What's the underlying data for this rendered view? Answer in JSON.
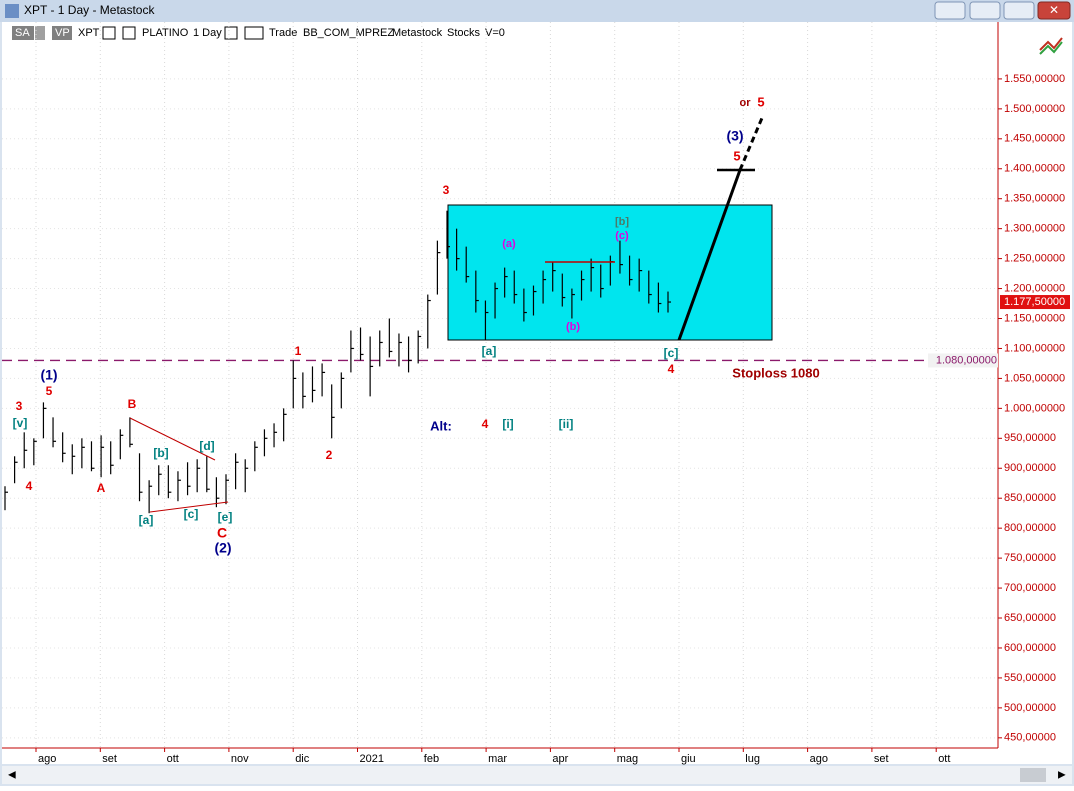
{
  "window": {
    "title": "XPT - 1 Day - Metastock",
    "toolbar": [
      "SA",
      "VP",
      "XPT",
      "PLATINO",
      "1 Day",
      "Trade",
      "BB_COM_MPREZ",
      "Metastock",
      "Stocks",
      "V=0"
    ]
  },
  "chart_data": {
    "type": "ohlc",
    "color": "#000000",
    "categories": [
      "ago",
      "set",
      "ott",
      "nov",
      "dic",
      "2021",
      "feb",
      "mar",
      "apr",
      "mag",
      "giu",
      "lug",
      "ago",
      "set",
      "ott"
    ],
    "high": [
      870,
      920,
      960,
      950,
      1010,
      985,
      960,
      940,
      950,
      945,
      955,
      945,
      965,
      985,
      925,
      880,
      905,
      905,
      895,
      910,
      915,
      920,
      885,
      890,
      925,
      915,
      945,
      965,
      975,
      1000,
      1080,
      1060,
      1070,
      1075,
      1040,
      1060,
      1130,
      1135,
      1120,
      1130,
      1150,
      1125,
      1120,
      1130,
      1190,
      1280,
      1330,
      1300,
      1270,
      1230,
      1180,
      1210,
      1235,
      1230,
      1200,
      1205,
      1230,
      1245,
      1225,
      1200,
      1230,
      1250,
      1240,
      1255,
      1280,
      1255,
      1250,
      1230,
      1210,
      1195
    ],
    "low": [
      830,
      875,
      900,
      905,
      950,
      935,
      910,
      890,
      900,
      895,
      885,
      890,
      915,
      935,
      845,
      825,
      855,
      850,
      845,
      855,
      860,
      860,
      835,
      840,
      865,
      860,
      895,
      920,
      935,
      945,
      1000,
      1000,
      1010,
      1020,
      950,
      1000,
      1060,
      1080,
      1020,
      1070,
      1085,
      1070,
      1060,
      1075,
      1100,
      1190,
      1250,
      1230,
      1210,
      1160,
      1115,
      1150,
      1185,
      1175,
      1145,
      1155,
      1175,
      1195,
      1170,
      1150,
      1180,
      1195,
      1185,
      1205,
      1225,
      1205,
      1195,
      1175,
      1160,
      1160
    ],
    "close": [
      860,
      910,
      930,
      945,
      1000,
      945,
      925,
      920,
      935,
      900,
      935,
      905,
      955,
      940,
      860,
      870,
      890,
      860,
      880,
      870,
      900,
      865,
      850,
      880,
      910,
      900,
      935,
      950,
      960,
      990,
      1050,
      1020,
      1030,
      1060,
      985,
      1050,
      1100,
      1090,
      1070,
      1110,
      1095,
      1110,
      1080,
      1120,
      1180,
      1260,
      1270,
      1250,
      1220,
      1180,
      1160,
      1200,
      1220,
      1190,
      1160,
      1195,
      1215,
      1230,
      1185,
      1190,
      1215,
      1235,
      1200,
      1245,
      1240,
      1215,
      1230,
      1190,
      1175,
      1177.5
    ],
    "ylim": [
      433,
      1645
    ],
    "yticks": [
      {
        "value": 450,
        "label": "450,00000"
      },
      {
        "value": 500,
        "label": "500,00000"
      },
      {
        "value": 550,
        "label": "550,00000"
      },
      {
        "value": 600,
        "label": "600,00000"
      },
      {
        "value": 650,
        "label": "650,00000"
      },
      {
        "value": 700,
        "label": "700,00000"
      },
      {
        "value": 750,
        "label": "750,00000"
      },
      {
        "value": 800,
        "label": "800,00000"
      },
      {
        "value": 850,
        "label": "850,00000"
      },
      {
        "value": 900,
        "label": "900,00000"
      },
      {
        "value": 950,
        "label": "950,00000"
      },
      {
        "value": 1000,
        "label": "1.000,00000"
      },
      {
        "value": 1050,
        "label": "1.050,00000"
      },
      {
        "value": 1100,
        "label": "1.100,00000"
      },
      {
        "value": 1150,
        "label": "1.150,00000"
      },
      {
        "value": 1200,
        "label": "1.200,00000"
      },
      {
        "value": 1250,
        "label": "1.250,00000"
      },
      {
        "value": 1300,
        "label": "1.300,00000"
      },
      {
        "value": 1350,
        "label": "1.350,00000"
      },
      {
        "value": 1400,
        "label": "1.400,00000"
      },
      {
        "value": 1450,
        "label": "1.450,00000"
      },
      {
        "value": 1500,
        "label": "1.500,00000"
      },
      {
        "value": 1550,
        "label": "1.550,00000"
      }
    ],
    "grid": true,
    "last_price": {
      "value": 1177.5,
      "label": "1.177,50000"
    },
    "stoploss": {
      "value": 1080,
      "label": "1.080,00000"
    },
    "annotations": [
      "3",
      "[v]",
      "(1)",
      "5",
      "4",
      "A",
      "B",
      "[b]",
      "[d]",
      "[a]",
      "[c]",
      "[e]",
      "C",
      "(2)",
      "1",
      "2",
      "3",
      "(a)",
      "[b]",
      "(c)",
      "(b)",
      "[a]",
      "[c]",
      "4",
      "Alt:",
      "4",
      "[i]",
      "[ii]",
      "Stoploss 1080",
      "(3)",
      "5",
      "or",
      "5"
    ]
  }
}
